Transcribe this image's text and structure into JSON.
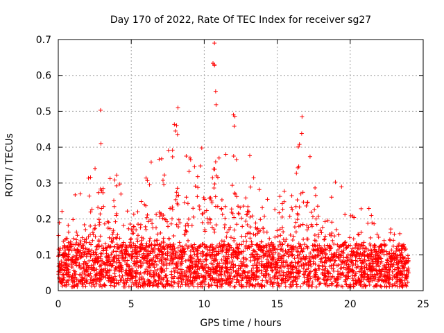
{
  "chart_data": {
    "type": "scatter",
    "title": "Day 170 of 2022, Rate Of TEC Index for receiver sg27",
    "xlabel": "GPS time / hours",
    "ylabel": "ROTI / TECUs",
    "xlim": [
      0,
      25
    ],
    "ylim": [
      0,
      0.7
    ],
    "xticks": [
      0,
      5,
      10,
      15,
      20,
      25
    ],
    "yticks": [
      0,
      0.1,
      0.2,
      0.3,
      0.4,
      0.5,
      0.6,
      0.7
    ],
    "xtick_labels": [
      "0",
      "5",
      "10",
      "15",
      "20",
      "25"
    ],
    "ytick_labels": [
      "0",
      "0.1",
      "0.2",
      "0.3",
      "0.4",
      "0.5",
      "0.6",
      "0.7"
    ],
    "grid": true,
    "marker": "plus",
    "color": "#ff0000",
    "envelope": {
      "x": [
        0,
        0.5,
        1,
        1.5,
        2,
        2.5,
        2.8,
        3,
        3.2,
        3.5,
        4,
        4.5,
        5,
        5.5,
        6,
        6.5,
        7,
        7.5,
        8,
        8.2,
        8.5,
        9,
        9.5,
        10,
        10.5,
        10.7,
        11,
        11.5,
        12,
        12.5,
        13,
        13.5,
        14,
        14.5,
        15,
        15.5,
        16,
        16.5,
        16.7,
        17,
        17.5,
        18,
        18.5,
        19,
        19.5,
        20,
        20.5,
        21,
        21.5,
        22,
        22.5,
        23,
        23.5,
        24
      ],
      "y": [
        0.2,
        0.23,
        0.28,
        0.25,
        0.3,
        0.35,
        0.5,
        0.42,
        0.38,
        0.3,
        0.32,
        0.28,
        0.3,
        0.27,
        0.32,
        0.36,
        0.35,
        0.37,
        0.5,
        0.48,
        0.42,
        0.4,
        0.38,
        0.42,
        0.45,
        0.69,
        0.45,
        0.4,
        0.49,
        0.36,
        0.38,
        0.3,
        0.31,
        0.22,
        0.29,
        0.26,
        0.28,
        0.48,
        0.46,
        0.4,
        0.38,
        0.3,
        0.3,
        0.29,
        0.27,
        0.26,
        0.2,
        0.26,
        0.2,
        0.18,
        0.17,
        0.14,
        0.16,
        0.08
      ]
    },
    "outliers": [
      {
        "x": 2.9,
        "y": 0.503
      },
      {
        "x": 10.7,
        "y": 0.69
      },
      {
        "x": 10.6,
        "y": 0.634
      },
      {
        "x": 10.7,
        "y": 0.628
      },
      {
        "x": 12.0,
        "y": 0.49
      },
      {
        "x": 12.1,
        "y": 0.486
      },
      {
        "x": 8.2,
        "y": 0.51
      },
      {
        "x": 16.7,
        "y": 0.485
      }
    ]
  }
}
